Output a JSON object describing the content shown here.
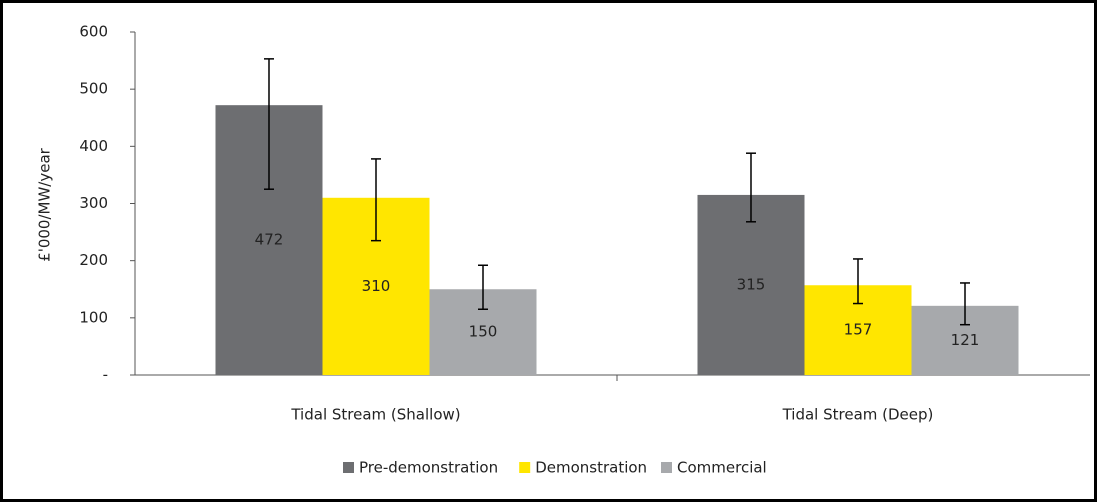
{
  "chart_data": {
    "type": "bar",
    "y_label": "£'000/MW/year",
    "categories": [
      "Tidal Stream (Shallow)",
      "Tidal Stream (Deep)"
    ],
    "series": [
      {
        "name": "Pre-demonstration",
        "color": "#6d6e71",
        "values": [
          472,
          315
        ],
        "lower": [
          325,
          268
        ],
        "upper": [
          553,
          388
        ]
      },
      {
        "name": "Demonstration",
        "color": "#ffe600",
        "values": [
          310,
          157
        ],
        "lower": [
          235,
          125
        ],
        "upper": [
          378,
          203
        ]
      },
      {
        "name": "Commercial",
        "color": "#a7a9ac",
        "values": [
          150,
          121
        ],
        "lower": [
          115,
          88
        ],
        "upper": [
          192,
          161
        ]
      }
    ],
    "ylim": [
      0,
      600
    ],
    "yticks": [
      {
        "value": 0,
        "label": "-"
      },
      100,
      200,
      300,
      400,
      500,
      600
    ],
    "legend": "bottom"
  }
}
